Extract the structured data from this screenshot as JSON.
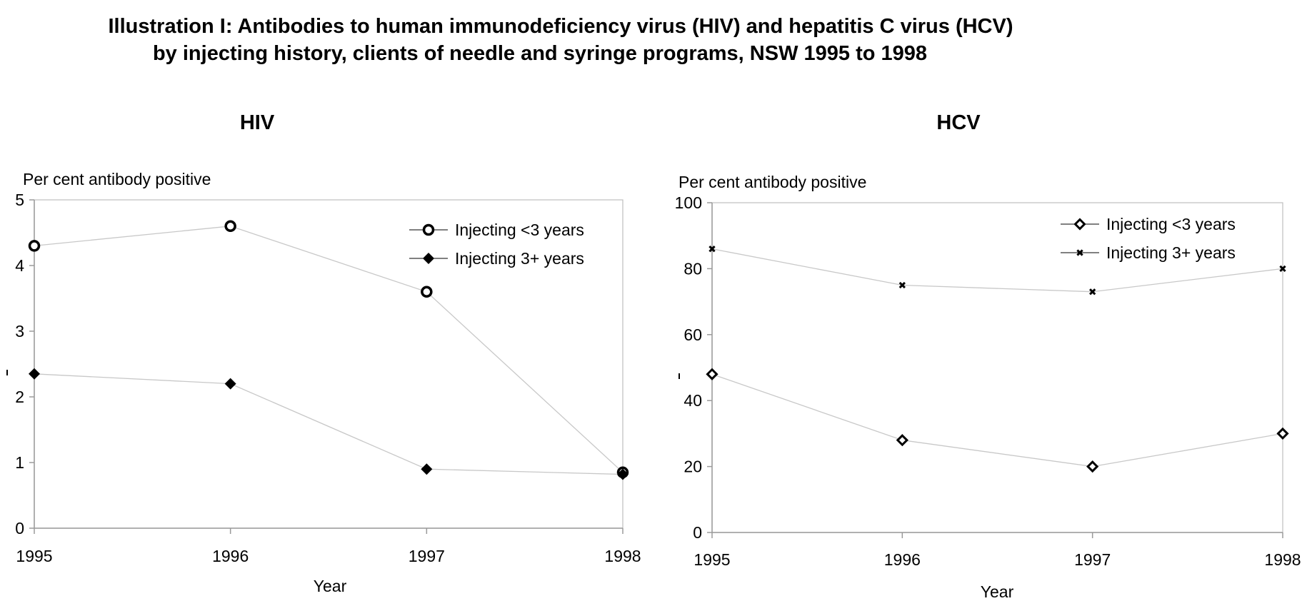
{
  "title": {
    "line1": "Illustration I: Antibodies to human immunodeficiency virus (HIV) and hepatitis C virus (HCV)",
    "line2": "by injecting history, clients of needle and syringe programs, NSW 1995 to 1998"
  },
  "chart_data": [
    {
      "type": "line",
      "title": "HIV",
      "ylabel": "Per cent antibody positive",
      "xlabel": "Year",
      "x": [
        "1995",
        "1996",
        "1997",
        "1998"
      ],
      "ylim": [
        0,
        5
      ],
      "yticks": [
        "0",
        "1",
        "2",
        "3",
        "4",
        "5"
      ],
      "legend_position": "top-right",
      "series": [
        {
          "name": "Injecting <3 years",
          "marker": "circle-open",
          "values": [
            4.3,
            4.6,
            3.6,
            0.85
          ]
        },
        {
          "name": "Injecting 3+ years",
          "marker": "diamond-filled",
          "values": [
            2.35,
            2.2,
            0.9,
            0.82
          ]
        }
      ]
    },
    {
      "type": "line",
      "title": "HCV",
      "ylabel": "Per cent antibody positive",
      "xlabel": "Year",
      "x": [
        "1995",
        "1996",
        "1997",
        "1998"
      ],
      "ylim": [
        0,
        100
      ],
      "yticks": [
        "0",
        "20",
        "40",
        "60",
        "80",
        "100"
      ],
      "legend_position": "top-right",
      "series": [
        {
          "name": "Injecting <3 years",
          "marker": "diamond-open",
          "values": [
            48,
            28,
            20,
            30
          ]
        },
        {
          "name": "Injecting 3+ years",
          "marker": "x-small",
          "values": [
            86,
            75,
            73,
            80
          ]
        }
      ]
    }
  ]
}
